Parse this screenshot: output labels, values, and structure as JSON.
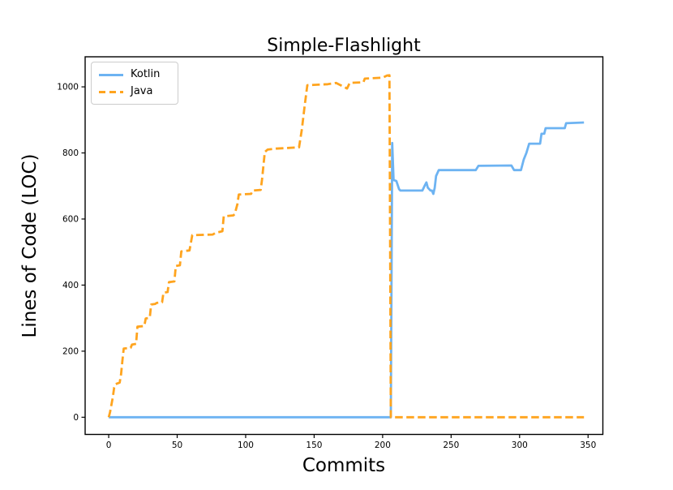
{
  "figure": {
    "background": "#ffffff",
    "axis_color": "#000000"
  },
  "chart_data": {
    "type": "line",
    "title": "Simple-Flashlight",
    "xlabel": "Commits",
    "ylabel": "Lines of Code (LOC)",
    "xlim": [
      -17.2,
      360.8
    ],
    "ylim": [
      -52,
      1091
    ],
    "xticks": [
      0,
      50,
      100,
      150,
      200,
      250,
      300,
      350
    ],
    "yticks": [
      0,
      200,
      400,
      600,
      800,
      1000
    ],
    "grid": false,
    "legend_position": "upper left",
    "series": [
      {
        "name": "Kotlin",
        "color": "#6db3f2",
        "style": "solid",
        "points": [
          [
            0,
            0
          ],
          [
            206,
            0
          ],
          [
            207,
            830
          ],
          [
            208,
            718
          ],
          [
            210,
            715
          ],
          [
            212,
            690
          ],
          [
            213,
            686
          ],
          [
            229,
            686
          ],
          [
            231,
            703
          ],
          [
            232,
            711
          ],
          [
            233,
            695
          ],
          [
            235,
            686
          ],
          [
            236,
            686
          ],
          [
            237,
            676
          ],
          [
            238,
            694
          ],
          [
            239,
            730
          ],
          [
            241,
            748
          ],
          [
            268,
            748
          ],
          [
            270,
            761
          ],
          [
            294,
            762
          ],
          [
            296,
            748
          ],
          [
            301,
            748
          ],
          [
            303,
            780
          ],
          [
            305,
            800
          ],
          [
            307,
            828
          ],
          [
            315,
            828
          ],
          [
            316,
            858
          ],
          [
            318,
            858
          ],
          [
            319,
            875
          ],
          [
            333,
            875
          ],
          [
            334,
            890
          ],
          [
            347,
            892
          ]
        ]
      },
      {
        "name": "Java",
        "color": "#ffa41e",
        "style": "dashed",
        "points": [
          [
            0,
            0
          ],
          [
            1,
            15
          ],
          [
            3,
            60
          ],
          [
            4,
            90
          ],
          [
            5,
            100
          ],
          [
            8,
            105
          ],
          [
            9,
            130
          ],
          [
            10,
            170
          ],
          [
            11,
            208
          ],
          [
            16,
            210
          ],
          [
            17,
            220
          ],
          [
            20,
            222
          ],
          [
            21,
            274
          ],
          [
            26,
            276
          ],
          [
            27,
            299
          ],
          [
            30,
            301
          ],
          [
            31,
            341
          ],
          [
            34,
            343
          ],
          [
            35,
            346
          ],
          [
            39,
            348
          ],
          [
            40,
            377
          ],
          [
            43,
            379
          ],
          [
            44,
            409
          ],
          [
            48,
            411
          ],
          [
            49,
            458
          ],
          [
            52,
            460
          ],
          [
            53,
            502
          ],
          [
            59,
            505
          ],
          [
            61,
            551
          ],
          [
            76,
            553
          ],
          [
            78,
            558
          ],
          [
            83,
            563
          ],
          [
            84,
            608
          ],
          [
            91,
            611
          ],
          [
            92,
            615
          ],
          [
            94,
            645
          ],
          [
            95,
            674
          ],
          [
            104,
            676
          ],
          [
            105,
            686
          ],
          [
            111,
            688
          ],
          [
            112,
            720
          ],
          [
            113,
            762
          ],
          [
            114,
            803
          ],
          [
            116,
            810
          ],
          [
            122,
            813
          ],
          [
            139,
            817
          ],
          [
            141,
            870
          ],
          [
            143,
            940
          ],
          [
            145,
            1005
          ],
          [
            160,
            1008
          ],
          [
            166,
            1012
          ],
          [
            174,
            995
          ],
          [
            176,
            1012
          ],
          [
            186,
            1014
          ],
          [
            187,
            1025
          ],
          [
            200,
            1028
          ],
          [
            203,
            1034
          ],
          [
            205,
            1035
          ],
          [
            206,
            0
          ],
          [
            347,
            0
          ]
        ]
      }
    ]
  }
}
